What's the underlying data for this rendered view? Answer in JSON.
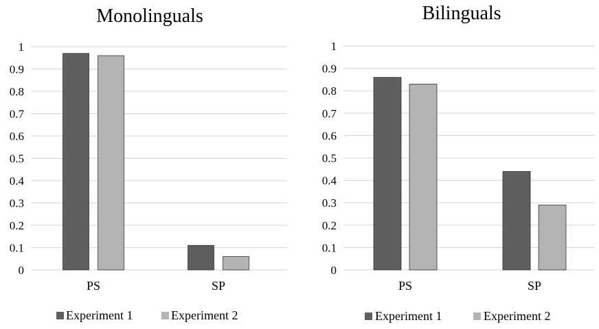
{
  "chart_data": [
    {
      "type": "bar",
      "title": "Monolinguals",
      "categories": [
        "PS",
        "SP"
      ],
      "series": [
        {
          "name": "Experiment 1",
          "values": [
            0.97,
            0.11
          ]
        },
        {
          "name": "Experiment 2",
          "values": [
            0.96,
            0.06
          ]
        }
      ],
      "yticks": [
        "0",
        "0.1",
        "0.2",
        "0.3",
        "0.4",
        "0.5",
        "0.6",
        "0.7",
        "0.8",
        "0.9",
        "1"
      ],
      "ylim": [
        0,
        1
      ],
      "grid": true,
      "legend": "bottom",
      "colors": [
        "#5f5f5f",
        "#b4b4b4"
      ]
    },
    {
      "type": "bar",
      "title": "Bilinguals",
      "categories": [
        "PS",
        "SP"
      ],
      "series": [
        {
          "name": "Experiment 1",
          "values": [
            0.86,
            0.44
          ]
        },
        {
          "name": "Experiment 2",
          "values": [
            0.83,
            0.29
          ]
        }
      ],
      "yticks": [
        "0",
        "0.1",
        "0.2",
        "0.3",
        "0.4",
        "0.5",
        "0.6",
        "0.7",
        "0.8",
        "0.9",
        "1"
      ],
      "ylim": [
        0,
        1
      ],
      "grid": true,
      "legend": "bottom",
      "colors": [
        "#5f5f5f",
        "#b4b4b4"
      ]
    }
  ]
}
